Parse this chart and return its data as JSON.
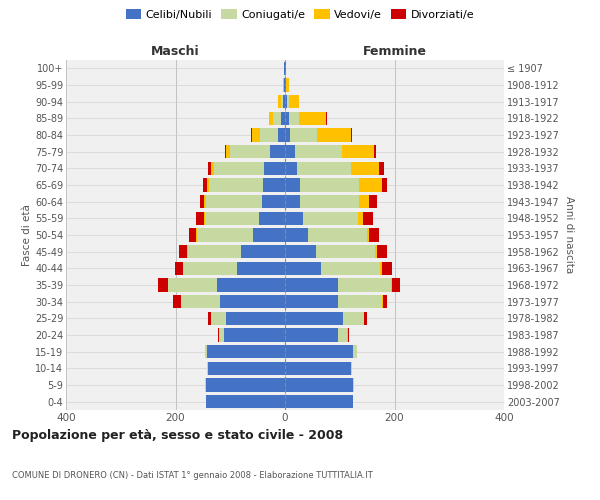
{
  "age_groups": [
    "0-4",
    "5-9",
    "10-14",
    "15-19",
    "20-24",
    "25-29",
    "30-34",
    "35-39",
    "40-44",
    "45-49",
    "50-54",
    "55-59",
    "60-64",
    "65-69",
    "70-74",
    "75-79",
    "80-84",
    "85-89",
    "90-94",
    "95-99",
    "100+"
  ],
  "birth_years": [
    "2003-2007",
    "1998-2002",
    "1993-1997",
    "1988-1992",
    "1983-1987",
    "1978-1982",
    "1973-1977",
    "1968-1972",
    "1963-1967",
    "1958-1962",
    "1953-1957",
    "1948-1952",
    "1943-1947",
    "1938-1942",
    "1933-1937",
    "1928-1932",
    "1923-1927",
    "1918-1922",
    "1913-1917",
    "1908-1912",
    "≤ 1907"
  ],
  "colors": {
    "celibi": "#4472c4",
    "coniugati": "#c5d9a0",
    "vedovi": "#ffc000",
    "divorziati": "#cc0000"
  },
  "maschi_celibi": [
    145,
    145,
    140,
    142,
    112,
    108,
    118,
    125,
    88,
    80,
    58,
    48,
    42,
    40,
    38,
    28,
    12,
    8,
    4,
    2,
    1
  ],
  "maschi_coniugati": [
    0,
    1,
    2,
    4,
    8,
    28,
    72,
    88,
    98,
    98,
    102,
    98,
    102,
    98,
    92,
    72,
    34,
    14,
    4,
    0,
    0
  ],
  "maschi_vedovi": [
    0,
    0,
    0,
    0,
    0,
    0,
    0,
    1,
    1,
    1,
    2,
    2,
    4,
    4,
    6,
    8,
    14,
    8,
    4,
    2,
    0
  ],
  "maschi_divorziati": [
    0,
    0,
    0,
    1,
    2,
    4,
    14,
    18,
    14,
    14,
    14,
    14,
    8,
    8,
    4,
    2,
    2,
    0,
    0,
    0,
    0
  ],
  "femmine_nubili": [
    125,
    125,
    120,
    125,
    96,
    106,
    96,
    96,
    66,
    56,
    42,
    32,
    28,
    28,
    22,
    18,
    10,
    8,
    4,
    2,
    1
  ],
  "femmine_coniugate": [
    0,
    1,
    2,
    6,
    18,
    38,
    82,
    98,
    108,
    108,
    108,
    102,
    108,
    108,
    98,
    86,
    48,
    18,
    4,
    0,
    0
  ],
  "femmine_vedove": [
    0,
    0,
    0,
    0,
    1,
    1,
    1,
    2,
    4,
    4,
    4,
    8,
    18,
    42,
    52,
    58,
    62,
    48,
    18,
    5,
    1
  ],
  "femmine_divorziate": [
    0,
    0,
    0,
    1,
    2,
    4,
    8,
    14,
    18,
    18,
    18,
    18,
    14,
    8,
    8,
    4,
    2,
    2,
    0,
    0,
    0
  ],
  "xlim": 400,
  "title": "Popolazione per età, sesso e stato civile - 2008",
  "subtitle": "COMUNE DI DRONERO (CN) - Dati ISTAT 1° gennaio 2008 - Elaborazione TUTTITALIA.IT",
  "ylabel_left": "Fasce di età",
  "ylabel_right": "Anni di nascita",
  "label_maschi": "Maschi",
  "label_femmine": "Femmine",
  "legend_labels": [
    "Celibi/Nubili",
    "Coniugati/e",
    "Vedovi/e",
    "Divorziati/e"
  ],
  "bg_color": "#ffffff",
  "plot_bg": "#f0f0f0",
  "grid_color": "#cccccc"
}
